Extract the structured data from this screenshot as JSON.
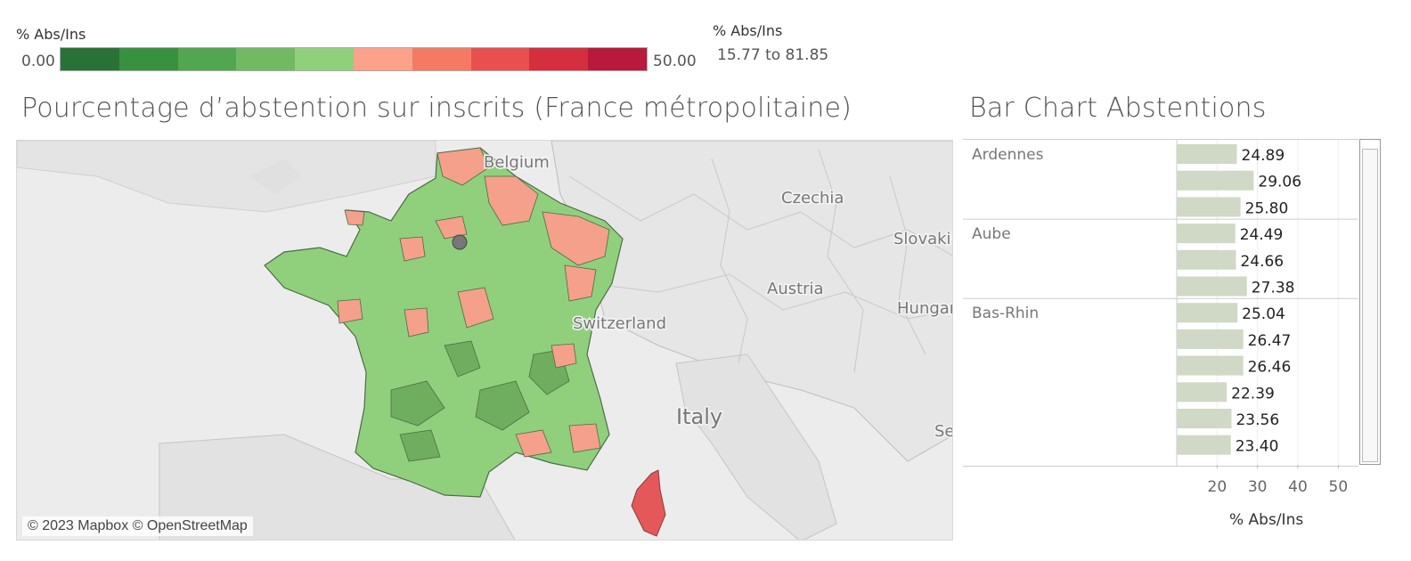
{
  "color_legend": {
    "title": "% Abs/Ins",
    "min_label": "0.00",
    "max_label": "50.00",
    "colors": [
      "#2a7138",
      "#38913f",
      "#52a64f",
      "#72b964",
      "#90d07d",
      "#fca18a",
      "#f57a64",
      "#e7504e",
      "#d42e3f",
      "#b71a3d"
    ]
  },
  "size_legend": {
    "title": "% Abs/Ins",
    "range": "15.77 to 81.85"
  },
  "map": {
    "title": "Pourcentage d’abstention sur inscrits (France métropolitaine)",
    "country_labels": [
      "Belgium",
      "Czechia",
      "Slovakia",
      "Austria",
      "Hungary",
      "Switzerland",
      "Italy",
      "Se"
    ],
    "attribution": "© 2023 Mapbox © OpenStreetMap",
    "colors": {
      "low": "#90d07d",
      "low_dark": "#6fae5e",
      "mid": "#f4a08a",
      "high": "#e4585a",
      "basemap": "#ececec",
      "land": "#dcdcdc"
    }
  },
  "bar_chart": {
    "title": "Bar Chart Abstentions",
    "axis_title": "% Abs/Ins",
    "bar_color": "#d0d8c6"
  },
  "chart_data": {
    "type": "bar",
    "orientation": "horizontal",
    "title": "Bar Chart Abstentions",
    "xlabel": "% Abs/Ins",
    "xlim": [
      10,
      55
    ],
    "ticks": [
      20,
      30,
      40,
      50
    ],
    "tick_labels": [
      "20",
      "30",
      "40",
      "50"
    ],
    "grid": true,
    "groups": [
      {
        "name": "Ardennes",
        "values": [
          24.89,
          29.06,
          25.8
        ]
      },
      {
        "name": "Aube",
        "values": [
          24.49,
          24.66,
          27.38
        ]
      },
      {
        "name": "Bas-Rhin",
        "values": [
          25.04,
          26.47,
          26.46,
          22.39,
          23.56,
          23.4
        ]
      }
    ]
  }
}
